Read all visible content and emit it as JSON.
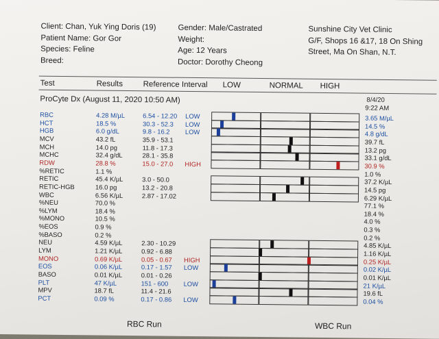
{
  "patient": {
    "client": "Client: Chan, Yuk Ying Doris (19)",
    "patient_name": "Patient Name: Gor Gor",
    "species": "Species: Feline",
    "breed": "Breed:",
    "gender": "Gender: Male/Castrated",
    "weight": "Weight:",
    "age": "Age: 12 Years",
    "doctor": "Doctor: Dorothy Cheong"
  },
  "clinic": {
    "name": "Sunshine City Vet Clinic",
    "address1": "G/F, Shops 16 &17, 18 On Shing",
    "address2": "Street, Ma On Shan, N.T."
  },
  "columns": {
    "test": "Test",
    "results": "Results",
    "reference": "Reference Interval",
    "low": "LOW",
    "normal": "NORMAL",
    "high": "HIGH"
  },
  "run": {
    "title": "ProCyte Dx (August 11, 2020 10:50 AM)",
    "prev_date": "8/4/20",
    "prev_time": "9:22 AM"
  },
  "colors": {
    "low": "#1d4fa3",
    "high": "#b02525",
    "marker": "#111111"
  },
  "rows": [
    {
      "test": "RBC",
      "result": "4.28 M/µL",
      "ref": "6.54 - 12.20",
      "flag": "LOW",
      "prev": "3.65 M/µL",
      "marker": 0.15,
      "grid": true
    },
    {
      "test": "HCT",
      "result": "18.5 %",
      "ref": "30.3 - 52.3",
      "flag": "LOW",
      "prev": "14.5 %",
      "marker": 0.07,
      "grid": true
    },
    {
      "test": "HGB",
      "result": "6.0 g/dL",
      "ref": "9.8 - 16.2",
      "flag": "LOW",
      "prev": "4.8 g/dL",
      "marker": 0.05,
      "grid": true
    },
    {
      "test": "MCV",
      "result": "43.2 fL",
      "ref": "35.9 - 53.1",
      "flag": "",
      "prev": "39.7 fL",
      "marker": 0.54,
      "grid": true
    },
    {
      "test": "MCH",
      "result": "14.0 pg",
      "ref": "11.8 - 17.3",
      "flag": "",
      "prev": "13.2 pg",
      "marker": 0.53,
      "grid": true
    },
    {
      "test": "MCHC",
      "result": "32.4 g/dL",
      "ref": "28.1 - 35.8",
      "flag": "",
      "prev": "33.1 g/dL",
      "marker": 0.58,
      "grid": true
    },
    {
      "test": "RDW",
      "result": "28.8 %",
      "ref": "15.0 - 27.0",
      "flag": "HIGH",
      "prev": "30.9 %",
      "marker": 0.86,
      "grid": true
    },
    {
      "test": "%RETIC",
      "result": "1.1 %",
      "ref": "",
      "flag": "",
      "prev": "1.0 %",
      "grid": false
    },
    {
      "test": "RETIC",
      "result": "45.4 K/µL",
      "ref": "3.0 - 50.0",
      "flag": "",
      "prev": "37.2 K/µL",
      "marker": 0.62,
      "grid": true
    },
    {
      "test": "RETIC-HGB",
      "result": "16.0 pg",
      "ref": "13.2 - 20.8",
      "flag": "",
      "prev": "14.5 pg",
      "marker": 0.52,
      "grid": true
    },
    {
      "test": "WBC",
      "result": "6.56 K/µL",
      "ref": "2.87 - 17.02",
      "flag": "",
      "prev": "6.29 K/µL",
      "marker": 0.43,
      "grid": true
    },
    {
      "test": "%NEU",
      "result": "70.0 %",
      "ref": "",
      "flag": "",
      "prev": "77.1 %",
      "grid": false
    },
    {
      "test": "%LYM",
      "result": "18.4 %",
      "ref": "",
      "flag": "",
      "prev": "18.4 %",
      "grid": false
    },
    {
      "test": "%MONO",
      "result": "10.5 %",
      "ref": "",
      "flag": "",
      "prev": "4.0 %",
      "grid": false
    },
    {
      "test": "%EOS",
      "result": "0.9 %",
      "ref": "",
      "flag": "",
      "prev": "0.3 %",
      "grid": false
    },
    {
      "test": "%BASO",
      "result": "0.2 %",
      "ref": "",
      "flag": "",
      "prev": "0.2 %",
      "grid": false
    },
    {
      "test": "NEU",
      "result": "4.59 K/µL",
      "ref": "2.30 - 10.29",
      "flag": "",
      "prev": "4.85 K/µL",
      "marker": 0.42,
      "grid": true
    },
    {
      "test": "LYM",
      "result": "1.21 K/µL",
      "ref": "0.92 - 6.88",
      "flag": "",
      "prev": "1.16 K/µL",
      "marker": 0.34,
      "grid": true
    },
    {
      "test": "MONO",
      "result": "0.69 K/µL",
      "ref": "0.05 - 0.67",
      "flag": "HIGH",
      "prev": "0.25 K/µL",
      "marker": 0.67,
      "grid": true
    },
    {
      "test": "EOS",
      "result": "0.06 K/µL",
      "ref": "0.17 - 1.57",
      "flag": "LOW",
      "prev": "0.02 K/µL",
      "marker": 0.11,
      "grid": true
    },
    {
      "test": "BASO",
      "result": "0.01 K/µL",
      "ref": "0.01 - 0.26",
      "flag": "",
      "prev": "0.01 K/µL",
      "marker": 0.34,
      "grid": true
    },
    {
      "test": "PLT",
      "result": "47 K/µL",
      "ref": "151 - 600",
      "flag": "LOW",
      "prev": "21 K/µL",
      "marker": 0.03,
      "grid": true
    },
    {
      "test": "MPV",
      "result": "18.7 fL",
      "ref": "11.4 - 21.6",
      "flag": "",
      "prev": "19.6 fL",
      "marker": 0.55,
      "grid": true
    },
    {
      "test": "PCT",
      "result": "0.09 %",
      "ref": "0.17 - 0.86",
      "flag": "LOW",
      "prev": "0.04 %",
      "marker": 0.17,
      "grid": true
    }
  ],
  "footer": {
    "rbc_run": "RBC Run",
    "wbc_run": "WBC Run"
  }
}
